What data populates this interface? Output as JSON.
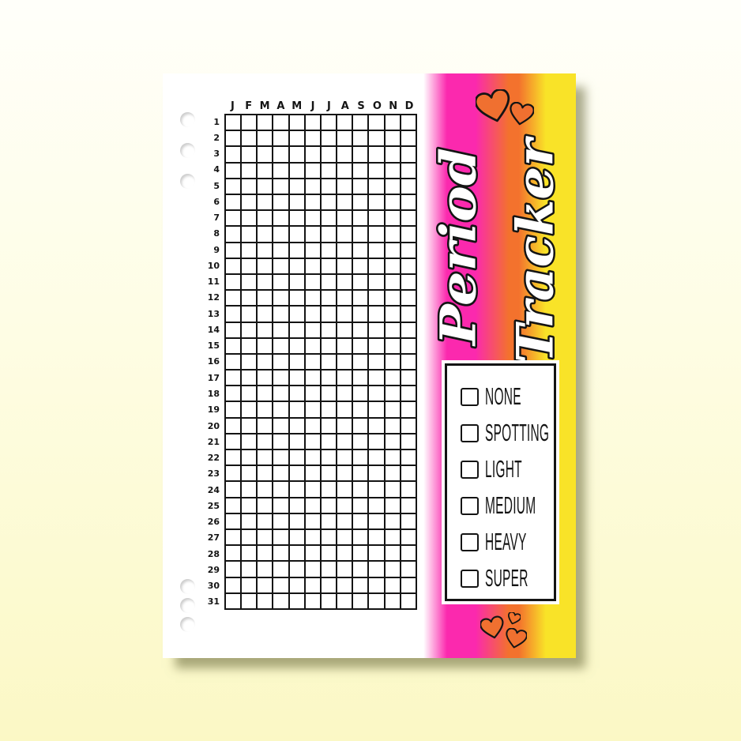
{
  "title": {
    "word1": "Period",
    "word2": "Tracker"
  },
  "grid": {
    "month_labels": [
      "J",
      "F",
      "M",
      "A",
      "M",
      "J",
      "J",
      "A",
      "S",
      "O",
      "N",
      "D"
    ],
    "day_labels": [
      "1",
      "2",
      "3",
      "4",
      "5",
      "6",
      "7",
      "8",
      "9",
      "10",
      "11",
      "12",
      "13",
      "14",
      "15",
      "16",
      "17",
      "18",
      "19",
      "20",
      "21",
      "22",
      "23",
      "24",
      "25",
      "26",
      "27",
      "28",
      "29",
      "30",
      "31"
    ],
    "columns": 12,
    "rows": 31
  },
  "legend": {
    "items": [
      {
        "label": "NONE",
        "checked": false
      },
      {
        "label": "SPOTTING",
        "checked": false
      },
      {
        "label": "LIGHT",
        "checked": false
      },
      {
        "label": "MEDIUM",
        "checked": false
      },
      {
        "label": "HEAVY",
        "checked": false
      },
      {
        "label": "SUPER",
        "checked": false
      }
    ]
  },
  "decorations": {
    "top_hearts": [
      "heart-icon",
      "heart-icon"
    ],
    "bottom_hearts": [
      "heart-icon",
      "heart-icon",
      "heart-icon"
    ],
    "punch_hole_count": 6
  },
  "colors": {
    "bg_top": "#FFFFFA",
    "bg_bottom": "#FBF8C5",
    "page": "#FFFFFF",
    "pink": "#FB29AE",
    "orange": "#F3722D",
    "yellow": "#F9E328",
    "heart": "#F07030",
    "ink": "#141414"
  }
}
